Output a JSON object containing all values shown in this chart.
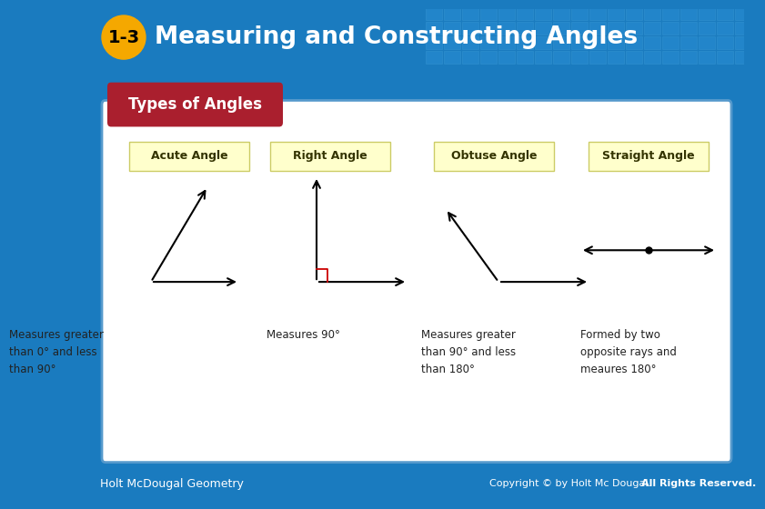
{
  "title": "Measuring and Constructing Angles",
  "lesson_num": "1-3",
  "header_bg": "#1a7bbf",
  "header_tile_color": "#2a8ed4",
  "title_color": "#ffffff",
  "badge_fill": "#f5a800",
  "badge_text_color": "#000000",
  "footer_bg": "#1a7bbf",
  "footer_left": "Holt McDougal Geometry",
  "footer_right": "Copyright © by Holt Mc Dougal.",
  "footer_right_bold": "All Rights Reserved.",
  "footer_text_color": "#ffffff",
  "card_bg": "#ffffff",
  "card_border": "#5599cc",
  "types_label_bg": "#aa1f2e",
  "types_label_text": "#ffffff",
  "types_label": "Types of Angles",
  "angle_label_bg": "#ffffcc",
  "angle_label_border": "#cccc66",
  "angle_types": [
    "Acute Angle",
    "Right Angle",
    "Obtuse Angle",
    "Straight Angle"
  ],
  "angle_descriptions": [
    "Measures greater\nthan 0° and less\nthan 90°",
    "Measures 90°",
    "Measures greater\nthan 90° and less\nthan 180°",
    "Formed by two\nopposite rays and\nmeaures 180°"
  ]
}
